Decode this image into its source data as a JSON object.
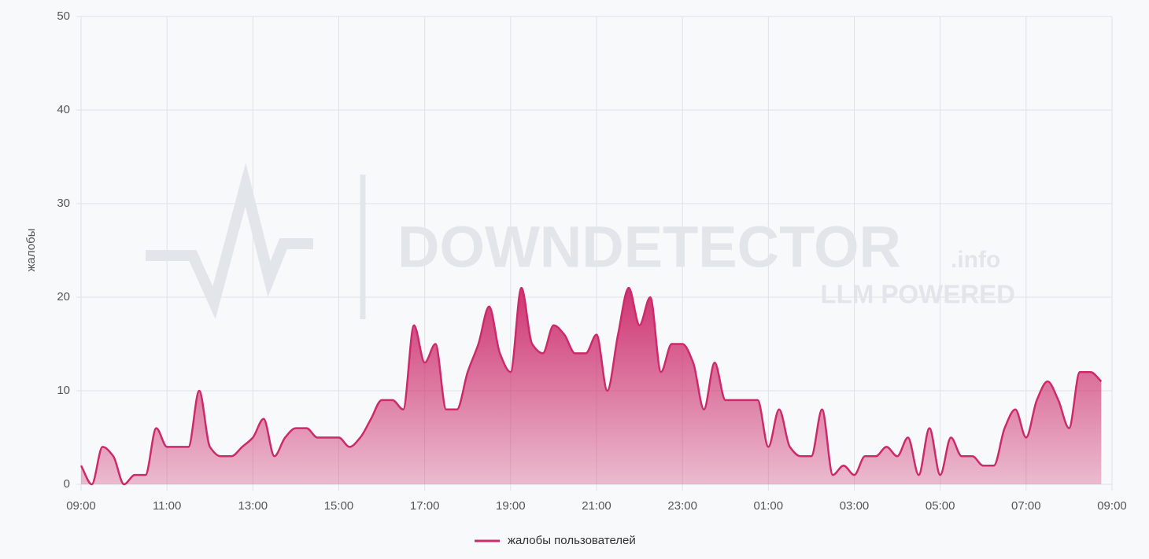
{
  "chart_data": {
    "type": "area",
    "y_label": "жалобы",
    "watermark": {
      "brand": "DOWNDETECTOR",
      "suffix": ".info",
      "tagline": "LLM POWERED"
    },
    "x": [
      0,
      0.25,
      0.5,
      0.75,
      1,
      1.25,
      1.5,
      1.75,
      2,
      2.25,
      2.5,
      2.75,
      3,
      3.25,
      3.5,
      3.75,
      4,
      4.25,
      4.5,
      4.75,
      5,
      5.25,
      5.5,
      5.75,
      6,
      6.25,
      6.5,
      6.75,
      7,
      7.25,
      7.5,
      7.75,
      8,
      8.25,
      8.5,
      8.75,
      9,
      9.25,
      9.5,
      9.75,
      10,
      10.25,
      10.5,
      10.75,
      11,
      11.25,
      11.5,
      11.75,
      12,
      12.25,
      12.5,
      12.75,
      13,
      13.25,
      13.5,
      13.75,
      14,
      14.25,
      14.5,
      14.75,
      15,
      15.25,
      15.5,
      15.75,
      16,
      16.25,
      16.5,
      16.75,
      17,
      17.25,
      17.5,
      17.75,
      18,
      18.25,
      18.5,
      18.75,
      19,
      19.25,
      19.5,
      19.75,
      20,
      20.25,
      20.5,
      20.75,
      21,
      21.25,
      21.5,
      21.75,
      22,
      22.25,
      22.5,
      22.75,
      23,
      23.25,
      23.5,
      23.75
    ],
    "series": [
      {
        "name": "жалобы пользователей",
        "color": "#cc2a6a",
        "values": [
          2,
          0,
          4,
          3,
          0,
          1,
          1,
          6,
          4,
          4,
          4,
          10,
          4,
          3,
          3,
          4,
          5,
          7,
          3,
          5,
          6,
          6,
          5,
          5,
          5,
          4,
          5,
          7,
          9,
          9,
          8,
          17,
          13,
          15,
          8,
          8,
          12,
          15,
          19,
          14,
          12,
          21,
          15,
          14,
          17,
          16,
          14,
          14,
          16,
          10,
          16,
          21,
          17,
          20,
          12,
          15,
          15,
          13,
          8,
          13,
          9,
          9,
          9,
          9,
          4,
          8,
          4,
          3,
          3,
          8,
          1,
          2,
          1,
          3,
          3,
          4,
          3,
          5,
          1,
          6,
          1,
          5,
          3,
          3,
          2,
          2,
          6,
          8,
          5,
          9,
          11,
          9,
          6,
          12,
          12,
          11
        ]
      }
    ],
    "xlim": [
      0,
      24
    ],
    "xticks": [
      {
        "value": 0,
        "label": "09:00"
      },
      {
        "value": 2,
        "label": "11:00"
      },
      {
        "value": 4,
        "label": "13:00"
      },
      {
        "value": 6,
        "label": "15:00"
      },
      {
        "value": 8,
        "label": "17:00"
      },
      {
        "value": 10,
        "label": "19:00"
      },
      {
        "value": 12,
        "label": "21:00"
      },
      {
        "value": 14,
        "label": "23:00"
      },
      {
        "value": 16,
        "label": "01:00"
      },
      {
        "value": 18,
        "label": "03:00"
      },
      {
        "value": 20,
        "label": "05:00"
      },
      {
        "value": 22,
        "label": "07:00"
      },
      {
        "value": 24,
        "label": "09:00"
      }
    ],
    "ylim": [
      0,
      50
    ],
    "yticks": [
      0,
      10,
      20,
      30,
      40,
      50
    ],
    "grid": true
  }
}
